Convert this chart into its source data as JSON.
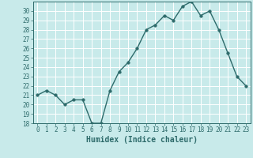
{
  "xlabel": "Humidex (Indice chaleur)",
  "x": [
    0,
    1,
    2,
    3,
    4,
    5,
    6,
    7,
    8,
    9,
    10,
    11,
    12,
    13,
    14,
    15,
    16,
    17,
    18,
    19,
    20,
    21,
    22,
    23
  ],
  "y": [
    21.0,
    21.5,
    21.0,
    20.0,
    20.5,
    20.5,
    18.0,
    18.0,
    21.5,
    23.5,
    24.5,
    26.0,
    28.0,
    28.5,
    29.5,
    29.0,
    30.5,
    31.0,
    29.5,
    30.0,
    28.0,
    25.5,
    23.0,
    22.0
  ],
  "line_color": "#2e6b6b",
  "marker_size": 2.5,
  "line_width": 1.0,
  "bg_color": "#c8eaea",
  "grid_color": "#ffffff",
  "tick_color": "#2e6b6b",
  "label_color": "#2e6b6b",
  "ylim": [
    18,
    31
  ],
  "yticks": [
    18,
    19,
    20,
    21,
    22,
    23,
    24,
    25,
    26,
    27,
    28,
    29,
    30
  ],
  "xlim": [
    -0.5,
    23.5
  ],
  "xticks": [
    0,
    1,
    2,
    3,
    4,
    5,
    6,
    7,
    8,
    9,
    10,
    11,
    12,
    13,
    14,
    15,
    16,
    17,
    18,
    19,
    20,
    21,
    22,
    23
  ],
  "axis_fontsize": 6.5,
  "tick_fontsize": 5.5,
  "xlabel_fontsize": 7.0
}
